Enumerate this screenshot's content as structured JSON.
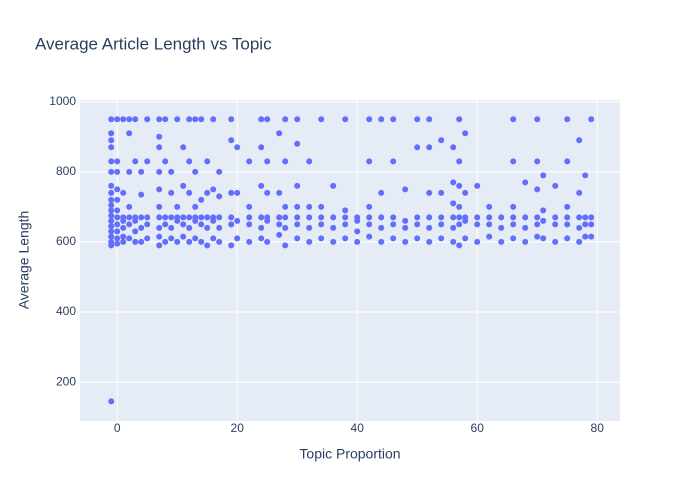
{
  "chart_data": {
    "type": "scatter",
    "title": "Average Article Length vs Topic",
    "x_label": "Topic Proportion",
    "y_label": "Average Length",
    "color": "#636efa",
    "grid": true,
    "xlim": [
      -6.2,
      83.8
    ],
    "ylim": [
      89,
      1005
    ],
    "xticks": [
      0,
      20,
      40,
      60,
      80
    ],
    "yticks": [
      200,
      400,
      600,
      800,
      1000
    ],
    "x": [
      -1,
      -1,
      -1,
      -1,
      -1,
      -1,
      -1,
      -1,
      -1,
      -1,
      -1,
      -1,
      -1,
      -1,
      -1,
      -1,
      -1,
      -1,
      -1,
      0,
      0,
      0,
      0,
      0,
      0,
      0,
      0,
      0,
      0,
      0,
      1,
      1,
      1,
      1,
      1,
      1,
      1,
      2,
      2,
      2,
      2,
      2,
      2,
      2,
      3,
      3,
      3,
      3,
      3,
      3,
      4,
      4,
      4,
      4,
      4,
      5,
      5,
      5,
      5,
      5,
      7,
      7,
      7,
      7,
      7,
      7,
      7,
      7,
      7,
      7,
      8,
      8,
      8,
      8,
      8,
      9,
      9,
      9,
      9,
      9,
      10,
      10,
      10,
      10,
      10,
      11,
      11,
      11,
      11,
      11,
      12,
      12,
      12,
      12,
      12,
      12,
      13,
      13,
      13,
      13,
      13,
      13,
      14,
      14,
      14,
      14,
      14,
      15,
      15,
      15,
      15,
      15,
      16,
      16,
      16,
      16,
      16,
      17,
      17,
      17,
      17,
      17,
      19,
      19,
      19,
      19,
      19,
      19,
      20,
      20,
      20,
      20,
      22,
      22,
      22,
      22,
      22,
      24,
      24,
      24,
      24,
      24,
      24,
      25,
      25,
      25,
      25,
      25,
      25,
      27,
      27,
      27,
      27,
      27,
      28,
      28,
      28,
      28,
      28,
      28,
      30,
      30,
      30,
      30,
      30,
      30,
      30,
      32,
      32,
      32,
      32,
      32,
      34,
      34,
      34,
      34,
      34,
      36,
      36,
      36,
      36,
      38,
      38,
      38,
      38,
      38,
      40,
      40,
      40,
      40,
      42,
      42,
      42,
      42,
      42,
      42,
      44,
      44,
      44,
      44,
      44,
      46,
      46,
      46,
      46,
      46,
      48,
      48,
      48,
      48,
      50,
      50,
      50,
      50,
      50,
      52,
      52,
      52,
      52,
      52,
      52,
      54,
      54,
      54,
      54,
      54,
      56,
      56,
      56,
      56,
      56,
      56,
      57,
      57,
      57,
      57,
      57,
      57,
      57,
      58,
      58,
      58,
      58,
      58,
      60,
      60,
      60,
      60,
      62,
      62,
      62,
      62,
      64,
      64,
      64,
      66,
      66,
      66,
      66,
      66,
      66,
      68,
      68,
      68,
      68,
      70,
      70,
      70,
      70,
      70,
      70,
      71,
      71,
      71,
      71,
      73,
      73,
      73,
      73,
      75,
      75,
      75,
      75,
      75,
      75,
      77,
      77,
      77,
      77,
      77,
      78,
      78,
      78,
      78,
      79,
      79,
      79,
      79
    ],
    "y": [
      590,
      600,
      615,
      630,
      645,
      660,
      675,
      690,
      705,
      720,
      740,
      760,
      800,
      830,
      870,
      890,
      910,
      950,
      145,
      595,
      610,
      630,
      650,
      670,
      690,
      720,
      750,
      800,
      830,
      950,
      600,
      615,
      640,
      660,
      670,
      740,
      950,
      610,
      650,
      670,
      700,
      800,
      910,
      950,
      600,
      630,
      660,
      670,
      830,
      950,
      600,
      640,
      670,
      735,
      800,
      610,
      650,
      670,
      830,
      950,
      590,
      615,
      640,
      670,
      700,
      750,
      800,
      870,
      900,
      950,
      600,
      650,
      670,
      830,
      950,
      610,
      640,
      670,
      740,
      800,
      600,
      660,
      670,
      700,
      950,
      615,
      650,
      670,
      760,
      870,
      600,
      640,
      670,
      740,
      830,
      950,
      610,
      660,
      670,
      700,
      800,
      950,
      600,
      650,
      670,
      720,
      950,
      590,
      640,
      670,
      740,
      830,
      610,
      660,
      670,
      750,
      950,
      600,
      640,
      670,
      730,
      800,
      590,
      650,
      670,
      740,
      890,
      950,
      610,
      660,
      740,
      870,
      600,
      650,
      670,
      700,
      830,
      610,
      640,
      670,
      760,
      870,
      950,
      600,
      660,
      670,
      740,
      830,
      950,
      620,
      650,
      670,
      740,
      910,
      590,
      640,
      670,
      700,
      830,
      950,
      610,
      650,
      670,
      700,
      760,
      880,
      950,
      600,
      640,
      670,
      700,
      830,
      610,
      650,
      670,
      700,
      950,
      600,
      640,
      670,
      760,
      610,
      650,
      670,
      690,
      950,
      600,
      630,
      660,
      670,
      615,
      650,
      670,
      700,
      830,
      950,
      600,
      640,
      670,
      740,
      950,
      610,
      650,
      670,
      830,
      950,
      600,
      640,
      660,
      750,
      610,
      650,
      670,
      870,
      950,
      600,
      640,
      670,
      740,
      870,
      950,
      610,
      650,
      670,
      740,
      890,
      600,
      640,
      670,
      710,
      770,
      870,
      590,
      650,
      670,
      700,
      760,
      830,
      950,
      610,
      660,
      670,
      740,
      910,
      600,
      650,
      670,
      760,
      615,
      650,
      670,
      700,
      600,
      640,
      670,
      610,
      650,
      670,
      700,
      830,
      950,
      600,
      640,
      670,
      770,
      615,
      650,
      670,
      750,
      830,
      950,
      610,
      660,
      690,
      790,
      600,
      650,
      670,
      760,
      610,
      650,
      670,
      700,
      830,
      950,
      600,
      640,
      670,
      740,
      890,
      615,
      650,
      670,
      790,
      615,
      650,
      670,
      950
    ]
  }
}
